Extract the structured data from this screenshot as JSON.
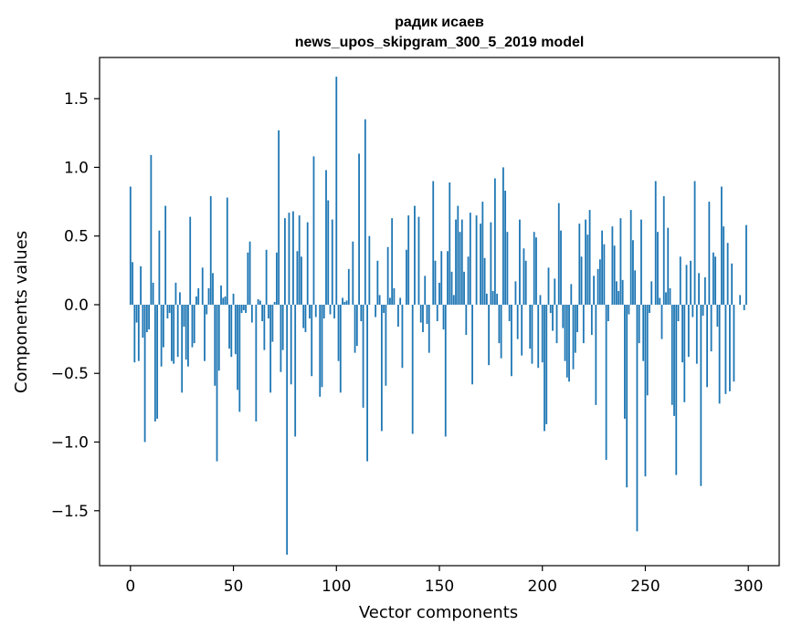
{
  "chart_data": {
    "type": "bar",
    "title_line1": "радик исаев",
    "title_line2": "news_upos_skipgram_300_5_2019 model",
    "xlabel": "Vector components",
    "ylabel": "Components values",
    "xlim": [
      -15,
      315
    ],
    "ylim": [
      -1.9,
      1.8
    ],
    "xticks": [
      0,
      50,
      100,
      150,
      200,
      250,
      300
    ],
    "xtick_labels": [
      "0",
      "50",
      "100",
      "150",
      "200",
      "250",
      "300"
    ],
    "yticks": [
      -1.5,
      -1.0,
      -0.5,
      0.0,
      0.5,
      1.0,
      1.5
    ],
    "ytick_labels": [
      "−1.5",
      "−1.0",
      "−0.5",
      "0.0",
      "0.5",
      "1.0",
      "1.5"
    ],
    "bar_color": "#1f77b4",
    "values": [
      0.86,
      0.31,
      -0.42,
      -0.13,
      -0.41,
      0.28,
      -0.24,
      -1.0,
      -0.2,
      -0.18,
      1.09,
      0.16,
      -0.85,
      -0.83,
      0.54,
      -0.45,
      -0.31,
      0.72,
      -0.1,
      -0.06,
      -0.41,
      -0.43,
      0.16,
      -0.38,
      0.09,
      -0.64,
      -0.16,
      -0.4,
      -0.45,
      0.64,
      -0.31,
      -0.28,
      0.06,
      0.12,
      0.0,
      0.27,
      -0.41,
      -0.07,
      0.12,
      0.79,
      0.23,
      -0.59,
      -1.14,
      -0.48,
      0.14,
      0.05,
      0.06,
      0.78,
      -0.32,
      -0.38,
      0.08,
      -0.36,
      -0.62,
      -0.78,
      -0.06,
      -0.04,
      -0.06,
      0.38,
      0.46,
      -0.13,
      0.0,
      -0.85,
      0.04,
      0.03,
      -0.12,
      -0.33,
      0.4,
      -0.1,
      -0.64,
      -0.27,
      0.02,
      0.38,
      1.27,
      -0.49,
      -0.33,
      0.63,
      -1.82,
      0.67,
      -0.58,
      0.68,
      -0.96,
      0.39,
      0.65,
      0.35,
      -0.17,
      -0.2,
      0.6,
      -0.1,
      -0.52,
      1.08,
      -0.09,
      0.0,
      -0.67,
      -0.6,
      -0.1,
      0.98,
      0.76,
      -0.07,
      0.62,
      -0.1,
      1.66,
      -0.41,
      -0.64,
      0.05,
      0.02,
      0.03,
      0.26,
      0.0,
      0.46,
      -0.35,
      -0.3,
      1.1,
      -0.12,
      -0.75,
      1.35,
      -1.14,
      0.5,
      0.0,
      0.0,
      -0.09,
      0.32,
      0.07,
      -0.92,
      -0.06,
      -0.59,
      0.42,
      0.05,
      0.63,
      0.12,
      0.0,
      -0.16,
      0.05,
      -0.46,
      0.0,
      0.4,
      0.65,
      0.0,
      -0.94,
      0.72,
      0.0,
      0.64,
      -0.13,
      -0.2,
      0.21,
      -0.14,
      -0.35,
      0.0,
      0.9,
      0.32,
      -0.12,
      0.16,
      0.39,
      -0.18,
      -0.96,
      0.39,
      0.89,
      0.24,
      0.07,
      0.62,
      0.72,
      0.53,
      0.62,
      0.24,
      -0.22,
      0.35,
      0.67,
      -0.58,
      0.0,
      0.65,
      0.0,
      0.59,
      0.75,
      0.34,
      0.08,
      -0.44,
      0.6,
      0.1,
      0.92,
      0.08,
      -0.28,
      -0.39,
      1.0,
      0.83,
      0.53,
      -0.12,
      -0.52,
      0.0,
      0.17,
      -0.25,
      0.62,
      -0.37,
      0.41,
      0.32,
      0.0,
      -0.32,
      -0.43,
      0.53,
      0.49,
      -0.46,
      0.07,
      -0.42,
      -0.92,
      -0.87,
      0.27,
      -0.06,
      -0.19,
      0.19,
      -0.28,
      0.74,
      0.54,
      -0.17,
      -0.41,
      -0.53,
      -0.56,
      0.15,
      -0.47,
      -0.35,
      -0.2,
      0.59,
      0.35,
      -0.28,
      0.62,
      0.51,
      0.69,
      -0.22,
      0.21,
      -0.73,
      0.26,
      0.33,
      0.54,
      0.44,
      -1.13,
      -0.12,
      0.0,
      0.57,
      0.43,
      0.17,
      0.1,
      0.63,
      0.18,
      -0.83,
      -1.33,
      -0.07,
      0.69,
      0.47,
      0.25,
      -1.65,
      -0.28,
      0.62,
      -0.41,
      -1.25,
      -0.66,
      -0.06,
      0.17,
      0.0,
      0.9,
      0.53,
      0.05,
      -0.25,
      0.79,
      0.09,
      0.56,
      0.12,
      -0.73,
      -0.81,
      -1.24,
      -0.12,
      0.35,
      -0.42,
      -0.71,
      0.29,
      -0.38,
      0.32,
      -0.09,
      0.9,
      -0.43,
      0.23,
      -1.32,
      -0.08,
      0.2,
      -0.6,
      0.75,
      -0.34,
      0.38,
      0.35,
      -0.16,
      -0.72,
      0.86,
      0.57,
      -0.65,
      0.45,
      -0.63,
      0.3,
      -0.56,
      0.0,
      0.0,
      0.07,
      0.0,
      -0.04,
      0.58
    ]
  }
}
